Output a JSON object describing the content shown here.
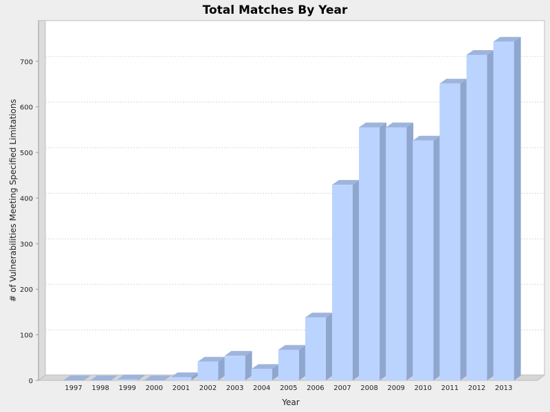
{
  "chart_data": {
    "type": "bar",
    "title": "Total Matches By Year",
    "xlabel": "Year",
    "ylabel": "# of Vulnerabilities Meeting Specified Limitations",
    "categories": [
      "1997",
      "1998",
      "1999",
      "2000",
      "2001",
      "2002",
      "2003",
      "2004",
      "2005",
      "2006",
      "2007",
      "2008",
      "2009",
      "2010",
      "2011",
      "2012",
      "2013"
    ],
    "values": [
      0,
      0,
      2,
      0,
      7,
      41,
      54,
      25,
      67,
      138,
      429,
      555,
      555,
      526,
      651,
      714,
      743
    ],
    "ylim": [
      0,
      790
    ],
    "yticks": [
      0,
      100,
      200,
      300,
      400,
      500,
      600,
      700
    ],
    "grid": true,
    "colors": {
      "bar_front": "#bbd4ff",
      "bar_side": "#8fa6cf",
      "bar_top": "#9eb4dc",
      "plot_bg": "#ffffff",
      "page_bg": "#eeeeee",
      "wall": "#dcdcdc"
    }
  }
}
